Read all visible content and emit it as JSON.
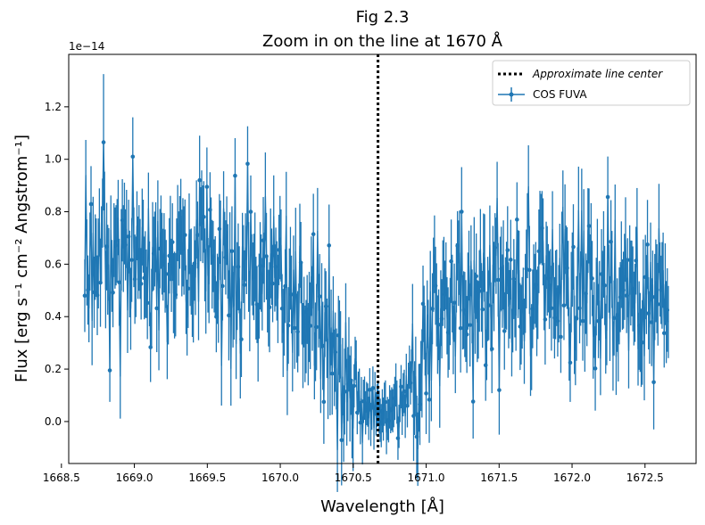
{
  "chart_data": {
    "type": "line",
    "title": "Fig 2.3",
    "subtitle": "Zoom in on the line at 1670 Å",
    "xlabel": "Wavelength [Å]",
    "ylabel": "Flux [erg s⁻¹ cm⁻² Angstrom⁻¹]",
    "y_offset_label": "1e−14",
    "xlim": [
      1668.55,
      1672.85
    ],
    "ylim": [
      -0.16,
      1.4
    ],
    "y_scale_note": "values in units of 1e-14",
    "x_ticks": [
      1668.5,
      1669.0,
      1669.5,
      1670.0,
      1670.5,
      1671.0,
      1671.5,
      1672.0,
      1672.5
    ],
    "x_tick_labels": [
      "1668.5",
      "1669.0",
      "1669.5",
      "1670.0",
      "1670.5",
      "1671.0",
      "1671.5",
      "1672.0",
      "1672.5"
    ],
    "y_ticks": [
      0.0,
      0.2,
      0.4,
      0.6,
      0.8,
      1.0,
      1.2
    ],
    "y_tick_labels": [
      "0.0",
      "0.2",
      "0.4",
      "0.6",
      "0.8",
      "1.0",
      "1.2"
    ],
    "grid": false,
    "legend_position": "top-right",
    "line_center": 1670.67,
    "legend": {
      "line_center_label": "Approximate line center",
      "series_label": "COS FUVA"
    },
    "series": [
      {
        "name": "COS FUVA",
        "color": "#1f77b4",
        "x_range": [
          1668.66,
          1672.66
        ],
        "profile": [
          [
            1668.66,
            0.6
          ],
          [
            1668.8,
            0.58
          ],
          [
            1669.0,
            0.58
          ],
          [
            1669.2,
            0.58
          ],
          [
            1669.5,
            0.58
          ],
          [
            1669.8,
            0.57
          ],
          [
            1670.0,
            0.52
          ],
          [
            1670.2,
            0.4
          ],
          [
            1670.4,
            0.27
          ],
          [
            1670.55,
            0.07
          ],
          [
            1670.67,
            0.03
          ],
          [
            1670.82,
            0.05
          ],
          [
            1670.95,
            0.28
          ],
          [
            1671.1,
            0.45
          ],
          [
            1671.3,
            0.5
          ],
          [
            1671.6,
            0.5
          ],
          [
            1672.0,
            0.5
          ],
          [
            1672.3,
            0.51
          ],
          [
            1672.66,
            0.52
          ]
        ],
        "noise_sd": 0.14,
        "error_sd": 0.15,
        "n_points": 560
      }
    ],
    "outliers": [
      {
        "x": 1668.79,
        "y": 1.065,
        "err": 0.26
      },
      {
        "x": 1668.83,
        "y": 0.195,
        "err": 0.12
      },
      {
        "x": 1668.99,
        "y": 1.01,
        "err": 0.15
      },
      {
        "x": 1669.45,
        "y": 0.92,
        "err": 0.17
      },
      {
        "x": 1669.5,
        "y": 0.895,
        "err": 0.15
      },
      {
        "x": 1670.3,
        "y": 0.075,
        "err": 0.16
      },
      {
        "x": 1671.24,
        "y": 0.8,
        "err": 0.17
      },
      {
        "x": 1671.5,
        "y": 0.12,
        "err": 0.17
      },
      {
        "x": 1672.52,
        "y": 0.675,
        "err": 0.17
      },
      {
        "x": 1672.56,
        "y": 0.15,
        "err": 0.18
      }
    ]
  }
}
